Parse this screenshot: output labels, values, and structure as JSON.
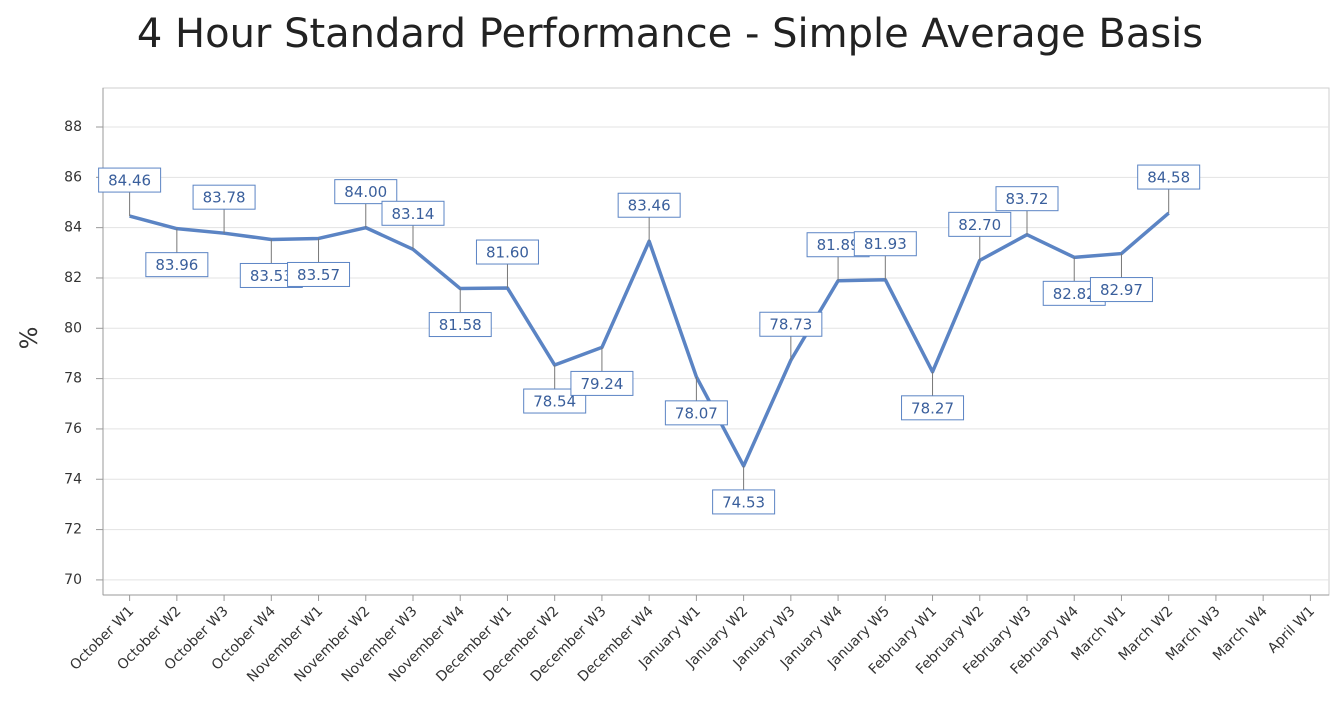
{
  "chart_data": {
    "type": "line",
    "title": "4 Hour Standard Performance - Simple Average Basis",
    "y_label": "%",
    "categories": [
      "October W1",
      "October W2",
      "October W3",
      "October W4",
      "November W1",
      "November W2",
      "November W3",
      "November W4",
      "December W1",
      "December W2",
      "December W3",
      "December W4",
      "January W1",
      "January W2",
      "January W3",
      "January W4",
      "January W5",
      "February W1",
      "February W2",
      "February W3",
      "February W4",
      "March W1",
      "March W2",
      "March W3",
      "March W4",
      "April W1"
    ],
    "series": [
      {
        "name": "4 Hour Standard Performance",
        "color": "#5b84c4",
        "values": [
          84.46,
          83.96,
          83.78,
          83.53,
          83.57,
          84.0,
          83.14,
          81.58,
          81.6,
          78.54,
          79.24,
          83.46,
          78.07,
          74.53,
          78.73,
          81.89,
          81.93,
          78.27,
          82.7,
          83.72,
          82.82,
          82.97,
          84.58,
          null,
          null,
          null
        ],
        "value_labels": [
          "84.46",
          "83.96",
          "83.78",
          "83.53",
          "83.57",
          "84.00",
          "83.14",
          "81.58",
          "81.60",
          "78.54",
          "79.24",
          "83.46",
          "78.07",
          "74.53",
          "78.73",
          "81.89",
          "81.93",
          "78.27",
          "82.70",
          "83.72",
          "82.82",
          "82.97",
          "84.58",
          null,
          null,
          null
        ]
      }
    ],
    "ylim": [
      69.4,
      89.55
    ],
    "yticks": [
      70,
      72,
      74,
      76,
      78,
      80,
      82,
      84,
      86,
      88
    ],
    "grid": true
  }
}
